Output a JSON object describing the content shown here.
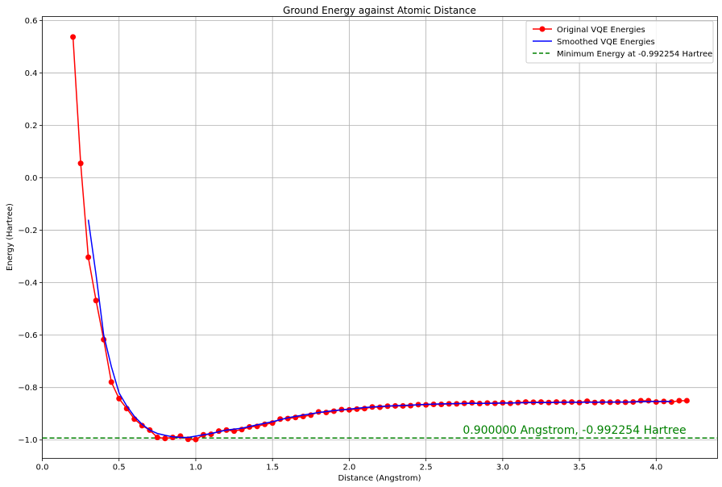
{
  "chart_data": {
    "type": "line",
    "title": "Ground Energy against Atomic Distance",
    "xlabel": "Distance (Angstrom)",
    "ylabel": "Energy (Hartree)",
    "xlim": [
      0.0,
      4.4
    ],
    "ylim": [
      -1.07,
      0.615
    ],
    "xticks": [
      0.0,
      0.5,
      1.0,
      1.5,
      2.0,
      2.5,
      3.0,
      3.5,
      4.0
    ],
    "xtick_labels": [
      "0.0",
      "0.5",
      "1.0",
      "1.5",
      "2.0",
      "2.5",
      "3.0",
      "3.5",
      "4.0"
    ],
    "yticks": [
      0.6,
      0.4,
      0.2,
      0.0,
      -0.2,
      -0.4,
      -0.6,
      -0.8,
      -1.0
    ],
    "ytick_labels": [
      "0.6",
      "0.4",
      "0.2",
      "0.0",
      "−0.2",
      "−0.4",
      "−0.6",
      "−0.8",
      "−1.0"
    ],
    "grid": true,
    "legend_position": "top-right",
    "series": [
      {
        "name": "Original VQE Energies",
        "color": "#ff0000",
        "marker": "circle",
        "x": [
          0.2,
          0.25,
          0.3,
          0.35,
          0.4,
          0.45,
          0.5,
          0.55,
          0.6,
          0.65,
          0.7,
          0.75,
          0.8,
          0.85,
          0.9,
          0.95,
          1.0,
          1.05,
          1.1,
          1.15,
          1.2,
          1.25,
          1.3,
          1.35,
          1.4,
          1.45,
          1.5,
          1.55,
          1.6,
          1.65,
          1.7,
          1.75,
          1.8,
          1.85,
          1.9,
          1.95,
          2.0,
          2.05,
          2.1,
          2.15,
          2.2,
          2.25,
          2.3,
          2.35,
          2.4,
          2.45,
          2.5,
          2.55,
          2.6,
          2.65,
          2.7,
          2.75,
          2.8,
          2.85,
          2.9,
          2.95,
          3.0,
          3.05,
          3.1,
          3.15,
          3.2,
          3.25,
          3.3,
          3.35,
          3.4,
          3.45,
          3.5,
          3.55,
          3.6,
          3.65,
          3.7,
          3.75,
          3.8,
          3.85,
          3.9,
          3.95,
          4.0,
          4.05,
          4.1,
          4.15,
          4.2
        ],
        "y": [
          0.537,
          0.055,
          -0.303,
          -0.468,
          -0.617,
          -0.779,
          -0.842,
          -0.88,
          -0.92,
          -0.945,
          -0.962,
          -0.99,
          -0.994,
          -0.99,
          -0.985,
          -0.997,
          -0.998,
          -0.98,
          -0.978,
          -0.966,
          -0.962,
          -0.966,
          -0.96,
          -0.95,
          -0.948,
          -0.94,
          -0.935,
          -0.92,
          -0.918,
          -0.914,
          -0.91,
          -0.905,
          -0.893,
          -0.895,
          -0.89,
          -0.884,
          -0.885,
          -0.882,
          -0.88,
          -0.874,
          -0.875,
          -0.871,
          -0.87,
          -0.87,
          -0.869,
          -0.865,
          -0.866,
          -0.864,
          -0.864,
          -0.862,
          -0.862,
          -0.86,
          -0.858,
          -0.861,
          -0.859,
          -0.86,
          -0.858,
          -0.86,
          -0.857,
          -0.855,
          -0.856,
          -0.855,
          -0.857,
          -0.855,
          -0.856,
          -0.855,
          -0.857,
          -0.852,
          -0.857,
          -0.855,
          -0.856,
          -0.855,
          -0.856,
          -0.855,
          -0.85,
          -0.85,
          -0.855,
          -0.853,
          -0.855,
          -0.85,
          -0.85
        ]
      },
      {
        "name": "Smoothed VQE Energies",
        "color": "#0000ff",
        "x": [
          0.3,
          0.35,
          0.4,
          0.45,
          0.5,
          0.55,
          0.6,
          0.65,
          0.7,
          0.75,
          0.8,
          0.85,
          0.9,
          0.95,
          1.0,
          1.1,
          1.2,
          1.3,
          1.4,
          1.5,
          1.6,
          1.7,
          1.8,
          1.9,
          2.0,
          2.1,
          2.2,
          2.3,
          2.4,
          2.5,
          2.6,
          2.7,
          2.8,
          2.9,
          3.0,
          3.1,
          3.2,
          3.3,
          3.4,
          3.5,
          3.6,
          3.7,
          3.8,
          3.9,
          4.0,
          4.1
        ],
        "y": [
          -0.16,
          -0.37,
          -0.6,
          -0.72,
          -0.82,
          -0.87,
          -0.91,
          -0.94,
          -0.962,
          -0.975,
          -0.982,
          -0.988,
          -0.99,
          -0.99,
          -0.985,
          -0.975,
          -0.962,
          -0.955,
          -0.942,
          -0.93,
          -0.915,
          -0.905,
          -0.895,
          -0.888,
          -0.882,
          -0.876,
          -0.872,
          -0.869,
          -0.867,
          -0.864,
          -0.862,
          -0.861,
          -0.86,
          -0.86,
          -0.859,
          -0.858,
          -0.857,
          -0.857,
          -0.856,
          -0.856,
          -0.856,
          -0.855,
          -0.855,
          -0.854,
          -0.853,
          -0.853
        ]
      },
      {
        "name": "Minimum Energy at -0.992254 Hartree",
        "color": "#008000",
        "style": "dashed",
        "y_constant": -0.992254
      }
    ],
    "annotations": [
      {
        "text": "0.900000 Angstrom, -0.992254 Hartree",
        "x": 2.74,
        "y": -0.976,
        "color": "#008000"
      }
    ]
  }
}
